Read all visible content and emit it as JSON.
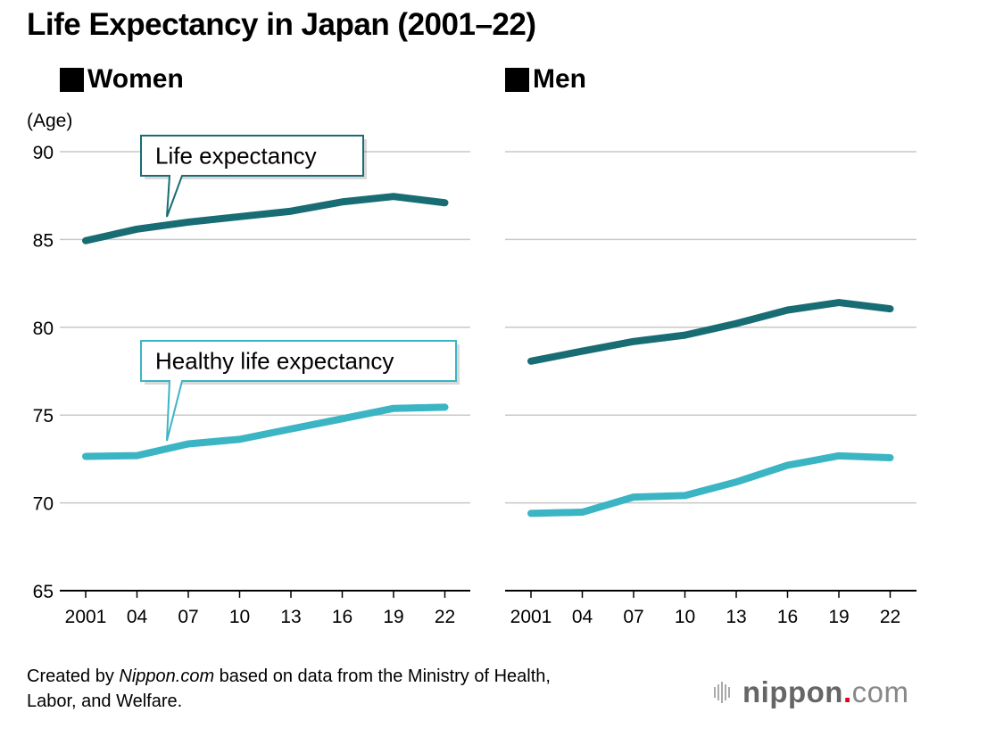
{
  "title": "Life Expectancy in Japan (2001–22)",
  "y_unit_label": "(Age)",
  "source": {
    "prefix": "Created by ",
    "site": "Nippon.com",
    "suffix": " based on data from the Ministry of Health,",
    "line2": "Labor, and Welfare."
  },
  "logo": {
    "name": "nippon",
    "dot": ".",
    "tld": "com"
  },
  "colors": {
    "life": "#186c74",
    "healthy": "#3bb5c3",
    "grid": "#c8c8c8",
    "axis": "#000000"
  },
  "callouts": {
    "life": "Life expectancy",
    "healthy": "Healthy life expectancy"
  },
  "chart_data": [
    {
      "type": "line",
      "title": "Women",
      "categories": [
        "2001",
        "04",
        "07",
        "10",
        "13",
        "16",
        "19",
        "22"
      ],
      "ylabel": "(Age)",
      "ylim": [
        65,
        90
      ],
      "yticks": [
        "65",
        "70",
        "75",
        "80",
        "85",
        "90"
      ],
      "series": [
        {
          "name": "Life expectancy",
          "values": [
            84.93,
            85.59,
            85.99,
            86.3,
            86.61,
            87.14,
            87.45,
            87.09
          ]
        },
        {
          "name": "Healthy life expectancy",
          "values": [
            72.65,
            72.69,
            73.36,
            73.62,
            74.21,
            74.79,
            75.38,
            75.45
          ]
        }
      ]
    },
    {
      "type": "line",
      "title": "Men",
      "categories": [
        "2001",
        "04",
        "07",
        "10",
        "13",
        "16",
        "19",
        "22"
      ],
      "ylim": [
        65,
        90
      ],
      "series": [
        {
          "name": "Life expectancy",
          "values": [
            78.07,
            78.64,
            79.19,
            79.55,
            80.21,
            80.98,
            81.41,
            81.05
          ]
        },
        {
          "name": "Healthy life expectancy",
          "values": [
            69.4,
            69.47,
            70.33,
            70.42,
            71.19,
            72.14,
            72.68,
            72.57
          ]
        }
      ]
    }
  ]
}
